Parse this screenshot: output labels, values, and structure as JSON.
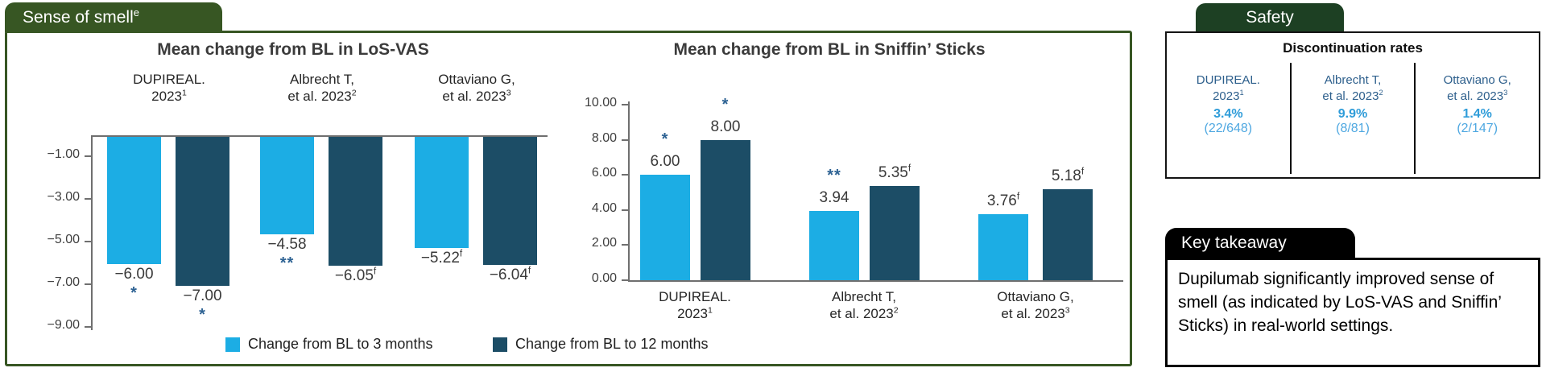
{
  "smell_panel": {
    "tab": "Sense of smell^e"
  },
  "chart_data": [
    {
      "type": "bar",
      "direction": "down",
      "title": "Mean change from BL in LoS-VAS",
      "categories": [
        [
          "DUPIREAL.",
          "2023^1"
        ],
        [
          "Albrecht T,",
          "et al. 2023^2"
        ],
        [
          "Ottaviano G,",
          "et al. 2023^3"
        ]
      ],
      "tick_labels": [
        "−1.00",
        "−3.00",
        "−5.00",
        "−7.00",
        "−9.00"
      ],
      "tick_values": [
        -1,
        -3,
        -5,
        -7,
        -9
      ],
      "ylim": [
        0,
        -9
      ],
      "grid": false,
      "legend_position": "bottom",
      "series": [
        {
          "name": "Change from BL to 3 months",
          "color": "#1CADE4",
          "values": [
            -6.0,
            -4.58,
            -5.22
          ],
          "labels": [
            "−6.00",
            "−4.58",
            "−5.22^f"
          ],
          "sig": [
            "*",
            "**",
            ""
          ]
        },
        {
          "name": "Change from BL to 12 months",
          "color": "#1C4D66",
          "values": [
            -7.0,
            -6.05,
            -6.04
          ],
          "labels": [
            "−7.00",
            "−6.05^f",
            "−6.04^f"
          ],
          "sig": [
            "*",
            "",
            ""
          ]
        }
      ]
    },
    {
      "type": "bar",
      "direction": "up",
      "title": "Mean change from BL in Sniffin’ Sticks",
      "categories": [
        [
          "DUPIREAL.",
          "2023^1"
        ],
        [
          "Albrecht T,",
          "et al. 2023^2"
        ],
        [
          "Ottaviano G,",
          "et al. 2023^3"
        ]
      ],
      "tick_labels": [
        "10.00",
        "8.00",
        "6.00",
        "4.00",
        "2.00",
        "0.00"
      ],
      "tick_values": [
        10,
        8,
        6,
        4,
        2,
        0
      ],
      "ylim": [
        0,
        10
      ],
      "grid": false,
      "legend_position": "bottom",
      "series": [
        {
          "name": "Change from BL to 3 months",
          "color": "#1CADE4",
          "values": [
            6.0,
            3.94,
            3.76
          ],
          "labels": [
            "6.00",
            "3.94",
            "3.76^f"
          ],
          "sig": [
            "*",
            "**",
            ""
          ]
        },
        {
          "name": "Change from BL to 12 months",
          "color": "#1C4D66",
          "values": [
            8.0,
            5.35,
            5.18
          ],
          "labels": [
            "8.00",
            "5.35^f",
            "5.18^f"
          ],
          "sig": [
            "*",
            "",
            ""
          ]
        }
      ]
    }
  ],
  "safety_panel": {
    "tab": "Safety",
    "heading": "Discontinuation rates",
    "columns": [
      {
        "study": [
          "DUPIREAL.",
          "2023^1"
        ],
        "rate": "3.4%",
        "fraction": "(22/648)"
      },
      {
        "study": [
          "Albrecht T,",
          "et al. 2023^2"
        ],
        "rate": "9.9%",
        "fraction": "(8/81)"
      },
      {
        "study": [
          "Ottaviano G,",
          "et al. 2023^3"
        ],
        "rate": "1.4%",
        "fraction": "(2/147)"
      }
    ]
  },
  "takeaway_panel": {
    "tab": "Key takeaway",
    "text": "Dupilumab significantly improved sense of smell (as indicated by LoS-VAS and Sniffin’ Sticks) in real-world settings."
  },
  "colors": {
    "light_blue": "#1CADE4",
    "dark_blue": "#1C4D66",
    "green": "#375623",
    "sig_blue": "#2D6293"
  }
}
